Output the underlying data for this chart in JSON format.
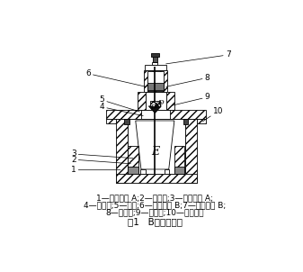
{
  "title": "图1   B阀结构示意",
  "caption_line1": "1—电磁线圈 A;2—大活塞;3—复位弹簧 A;",
  "caption_line2": "4—小活塞;5—阀杆;6—电磁线圈 B;7—复位弹簧 B;",
  "caption_line3": "8—动铁芯;9—小阀盖;10—橡胶垫圈",
  "bg_color": "#ffffff",
  "lc": "#000000",
  "fontsize_cap": 6.5,
  "fontsize_title": 7.5,
  "fontsize_label": 6.5
}
